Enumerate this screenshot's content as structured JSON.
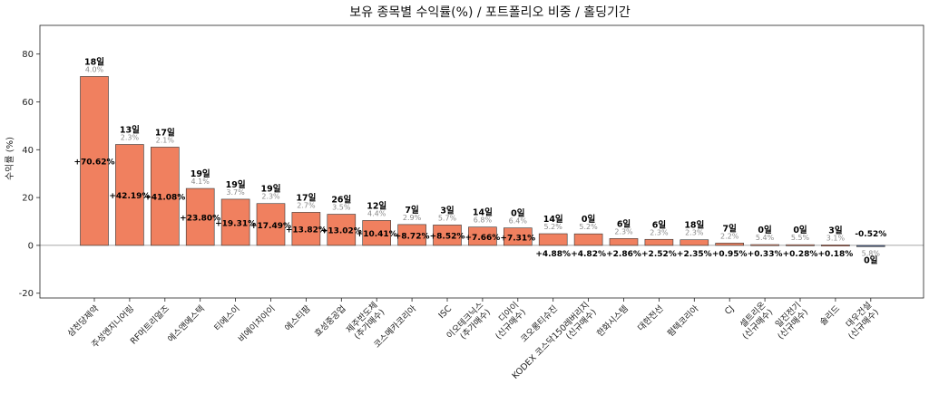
{
  "chart_data": {
    "type": "bar",
    "title": "보유 종목별 수익률(%) / 포트폴리오 비중 / 홀딩기간",
    "ylabel": "수익률 (%)",
    "xlabel": "",
    "ylim": [
      -22,
      92
    ],
    "yticks": [
      -20,
      0,
      20,
      40,
      60,
      80
    ],
    "grid": false,
    "colors": {
      "positive": "#f0805f",
      "negative": "#4a5f8c",
      "edge": "#333333",
      "zeroline": "#888888"
    },
    "bars": [
      {
        "name": [
          "삼천당제약"
        ],
        "value": 70.62,
        "label": "+70.62%",
        "days": "18일",
        "weight": "4.0%"
      },
      {
        "name": [
          "주성엔지니어링"
        ],
        "value": 42.19,
        "label": "+42.19%",
        "days": "13일",
        "weight": "2.3%"
      },
      {
        "name": [
          "RF머트리얼즈"
        ],
        "value": 41.08,
        "label": "+41.08%",
        "days": "17일",
        "weight": "2.1%"
      },
      {
        "name": [
          "에스앤에스텍"
        ],
        "value": 23.8,
        "label": "+23.80%",
        "days": "19일",
        "weight": "4.1%"
      },
      {
        "name": [
          "티에스이"
        ],
        "value": 19.31,
        "label": "+19.31%",
        "days": "19일",
        "weight": "3.7%"
      },
      {
        "name": [
          "비에이치아이"
        ],
        "value": 17.49,
        "label": "+17.49%",
        "days": "19일",
        "weight": "2.3%"
      },
      {
        "name": [
          "에스티팜"
        ],
        "value": 13.82,
        "label": "+13.82%",
        "days": "17일",
        "weight": "2.7%"
      },
      {
        "name": [
          "효성중공업"
        ],
        "value": 13.02,
        "label": "+13.02%",
        "days": "26일",
        "weight": "3.5%"
      },
      {
        "name": [
          "제주반도체",
          "(추가매수)"
        ],
        "value": 10.41,
        "label": "+10.41%",
        "days": "12일",
        "weight": "4.4%"
      },
      {
        "name": [
          "코스메카코리아"
        ],
        "value": 8.72,
        "label": "+8.72%",
        "days": "7일",
        "weight": "2.9%"
      },
      {
        "name": [
          "ISC"
        ],
        "value": 8.52,
        "label": "+8.52%",
        "days": "3일",
        "weight": "5.7%"
      },
      {
        "name": [
          "이오테크닉스",
          "(추가매수)"
        ],
        "value": 7.66,
        "label": "+7.66%",
        "days": "14일",
        "weight": "6.8%"
      },
      {
        "name": [
          "디아이",
          "(신규매수)"
        ],
        "value": 7.31,
        "label": "+7.31%",
        "days": "0일",
        "weight": "6.4%"
      },
      {
        "name": [
          "코오롱티슈진"
        ],
        "value": 4.88,
        "label": "+4.88%",
        "days": "14일",
        "weight": "5.2%"
      },
      {
        "name": [
          "KODEX 코스닥150레버리지",
          "(신규매수)"
        ],
        "value": 4.82,
        "label": "+4.82%",
        "days": "0일",
        "weight": "5.2%"
      },
      {
        "name": [
          "한화시스템"
        ],
        "value": 2.86,
        "label": "+2.86%",
        "days": "6일",
        "weight": "2.3%"
      },
      {
        "name": [
          "대한전선"
        ],
        "value": 2.52,
        "label": "+2.52%",
        "days": "6일",
        "weight": "2.3%"
      },
      {
        "name": [
          "펌텍코리아"
        ],
        "value": 2.35,
        "label": "+2.35%",
        "days": "18일",
        "weight": "2.3%"
      },
      {
        "name": [
          "CJ"
        ],
        "value": 0.95,
        "label": "+0.95%",
        "days": "7일",
        "weight": "2.2%"
      },
      {
        "name": [
          "셀트리온",
          "(신규매수)"
        ],
        "value": 0.33,
        "label": "+0.33%",
        "days": "0일",
        "weight": "5.4%"
      },
      {
        "name": [
          "일진전기",
          "(신규매수)"
        ],
        "value": 0.28,
        "label": "+0.28%",
        "days": "0일",
        "weight": "5.5%"
      },
      {
        "name": [
          "솔리드"
        ],
        "value": 0.18,
        "label": "+0.18%",
        "days": "3일",
        "weight": "3.1%"
      },
      {
        "name": [
          "대우건설",
          "(신규매수)"
        ],
        "value": -0.52,
        "label": "-0.52%",
        "days": "0일",
        "weight": "5.8%"
      }
    ]
  }
}
